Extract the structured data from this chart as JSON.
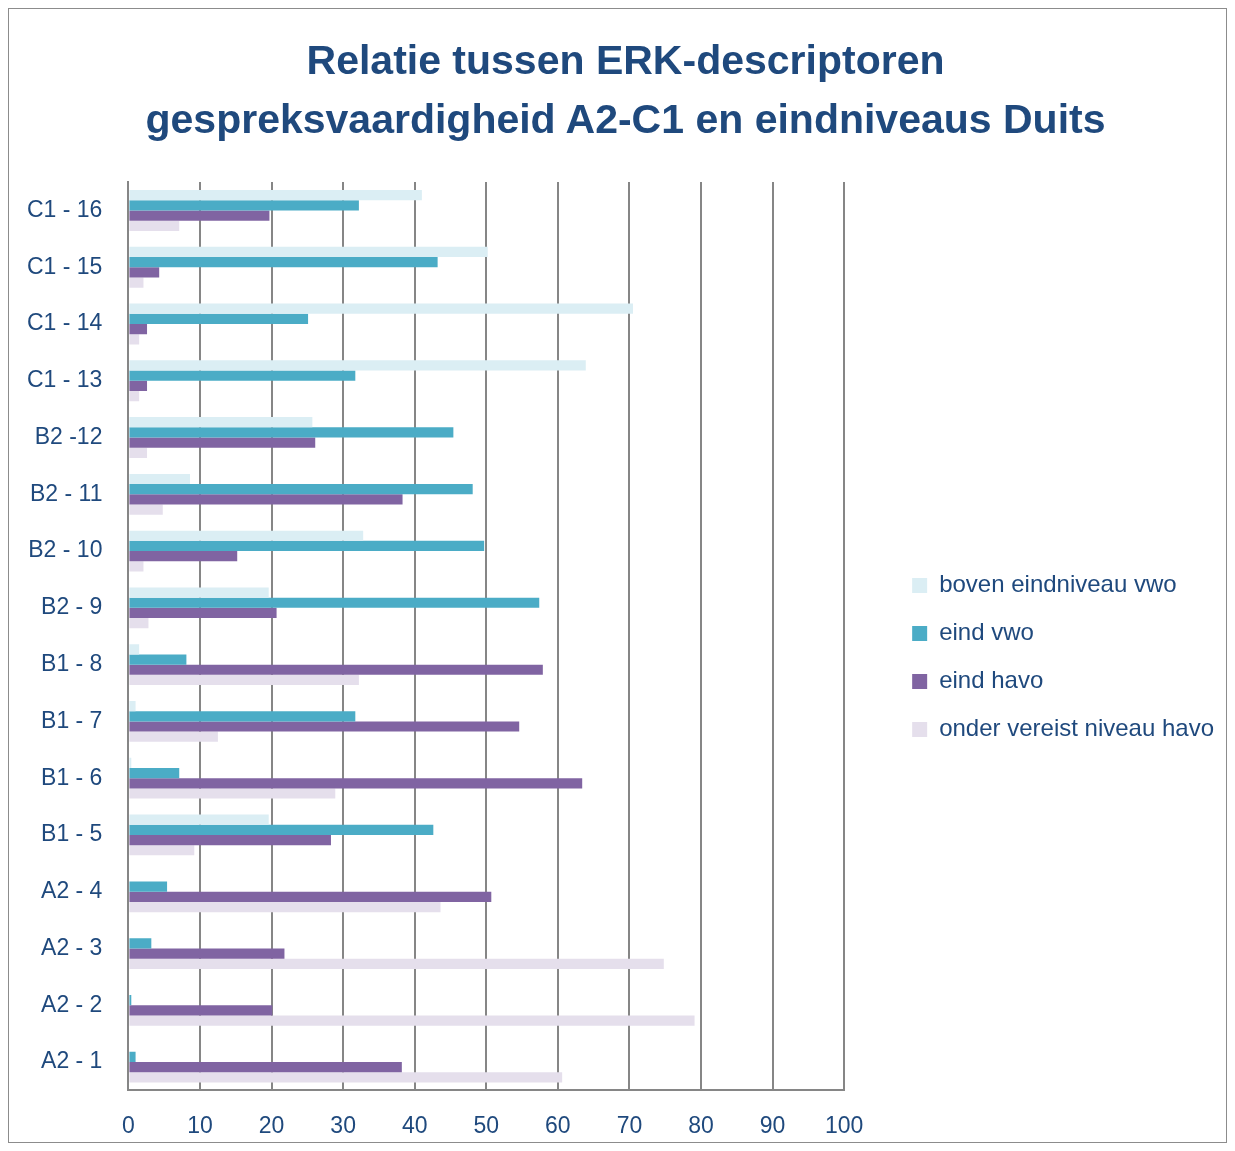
{
  "chart_data": {
    "type": "bar",
    "orientation": "horizontal",
    "title": "Relatie tussen ERK-descriptoren gespreksvaardigheid A2-C1 en eindniveaus Duits",
    "categories": [
      "C1 - 16",
      "C1 - 15",
      "C1 - 14",
      "C1 - 13",
      "B2 -12",
      "B2 - 11",
      "B2 - 10",
      "B2 - 9",
      "B1 - 8",
      "B1 - 7",
      "B1 - 6",
      "B1 - 5",
      "A2 - 4",
      "A2 - 3",
      "A2 - 2",
      "A2 - 1"
    ],
    "series": [
      {
        "name": "boven eindniveau vwo",
        "color": "#dbeef4",
        "values": [
          41.0,
          50.2,
          70.5,
          63.9,
          25.7,
          8.6,
          32.8,
          19.6,
          1.5,
          1.0,
          0.4,
          19.6,
          0,
          0,
          0,
          0
        ]
      },
      {
        "name": "eind vwo",
        "color": "#4bacc6",
        "values": [
          32.2,
          43.2,
          25.1,
          31.7,
          45.4,
          48.1,
          49.7,
          57.4,
          8.1,
          31.7,
          7.1,
          42.6,
          5.4,
          3.2,
          0.4,
          1.0
        ]
      },
      {
        "name": "eind havo",
        "color": "#8064a2",
        "values": [
          19.7,
          4.3,
          2.6,
          2.6,
          26.1,
          38.3,
          15.2,
          20.7,
          57.9,
          54.6,
          63.4,
          28.3,
          50.7,
          21.8,
          20.1,
          38.2
        ]
      },
      {
        "name": "onder vereist niveau havo",
        "color": "#e5dfec",
        "values": [
          7.1,
          2.1,
          1.5,
          1.5,
          2.6,
          4.8,
          2.1,
          2.8,
          32.2,
          12.5,
          28.9,
          9.2,
          43.6,
          74.8,
          79.1,
          60.6
        ]
      }
    ],
    "xlim": [
      0,
      100
    ],
    "xticks": [
      0,
      10,
      20,
      30,
      40,
      50,
      60,
      70,
      80,
      90,
      100
    ],
    "grid": "x",
    "legend": "right"
  }
}
